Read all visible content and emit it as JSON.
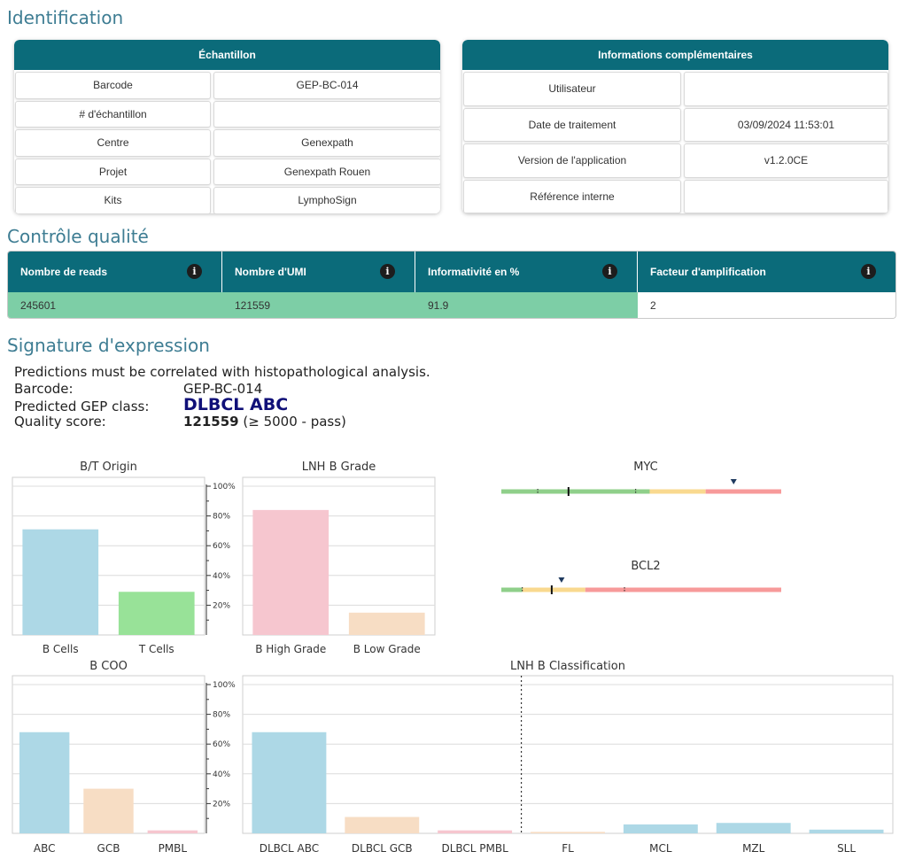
{
  "sections": {
    "identification": "Identification",
    "quality_control": "Contrôle qualité",
    "signature": "Signature d'expression"
  },
  "sample_panel": {
    "title": "Échantillon",
    "rows": [
      {
        "label": "Barcode",
        "value": "GEP-BC-014"
      },
      {
        "label": "# d'échantillon",
        "value": ""
      },
      {
        "label": "Centre",
        "value": "Genexpath"
      },
      {
        "label": "Projet",
        "value": "Genexpath Rouen"
      },
      {
        "label": "Kits",
        "value": "LymphoSign"
      }
    ]
  },
  "extra_panel": {
    "title": "Informations complémentaires",
    "rows": [
      {
        "label": "Utilisateur",
        "value": ""
      },
      {
        "label": "Date de traitement",
        "value": "03/09/2024 11:53:01"
      },
      {
        "label": "Version de l'application",
        "value": "v1.2.0CE"
      },
      {
        "label": "Référence interne",
        "value": ""
      }
    ]
  },
  "qc": {
    "headers": [
      "Nombre de reads",
      "Nombre d'UMI",
      "Informativité en %",
      "Facteur d'amplification"
    ],
    "values": [
      "245601",
      "121559",
      "91.9",
      "2"
    ],
    "pass_color": "#7dcea6",
    "info_icon": "info-icon"
  },
  "signature": {
    "disclaimer": "Predictions must be correlated with histopathological analysis.",
    "barcode_label": "Barcode:",
    "barcode_value": "GEP-BC-014",
    "class_label": "Predicted GEP class:",
    "class_value": "DLBCL ABC",
    "score_label": "Quality score:",
    "score_value": "121559",
    "score_note": " (≥ 5000 - pass)"
  },
  "chart_data": [
    {
      "type": "bar",
      "title": "B/T Origin",
      "categories": [
        "B Cells",
        "T Cells"
      ],
      "values": [
        71,
        29
      ],
      "colors": [
        "#add8e6",
        "#98e298"
      ],
      "ylim": [
        0,
        100
      ],
      "ytick_labels": [
        "20%",
        "40%",
        "60%",
        "80%",
        "100%"
      ],
      "grid": true
    },
    {
      "type": "bar",
      "title": "LNH B Grade",
      "categories": [
        "B High Grade",
        "B Low Grade"
      ],
      "values": [
        84,
        15
      ],
      "colors": [
        "#f6c6cf",
        "#f7ddc4"
      ],
      "ylim": [
        0,
        100
      ],
      "ytick_labels": [
        "20%",
        "40%",
        "60%",
        "80%",
        "100%"
      ],
      "grid": true
    },
    {
      "type": "bar",
      "title": "B COO",
      "categories": [
        "ABC",
        "GCB",
        "PMBL"
      ],
      "values": [
        68,
        30,
        2
      ],
      "colors": [
        "#add8e6",
        "#f7ddc4",
        "#f6c6cf"
      ],
      "ylim": [
        0,
        100
      ],
      "ytick_labels": [
        "20%",
        "40%",
        "60%",
        "80%",
        "100%"
      ],
      "grid": true
    },
    {
      "type": "bar",
      "title": "LNH B Classification",
      "categories": [
        "DLBCL ABC",
        "DLBCL GCB",
        "DLBCL PMBL",
        "FL",
        "MCL",
        "MZL",
        "SLL"
      ],
      "values": [
        68,
        11,
        2,
        1,
        6,
        7,
        2.5
      ],
      "colors": [
        "#add8e6",
        "#f7ddc4",
        "#f6c6cf",
        "#f7ddc4",
        "#add8e6",
        "#add8e6",
        "#add8e6"
      ],
      "ylim": [
        0,
        100
      ],
      "grid": true,
      "divider_after_index": 2
    },
    {
      "type": "gauge",
      "title": "MYC",
      "segments": [
        {
          "from": 0,
          "to": 0.53,
          "color": "#8fcf8a"
        },
        {
          "from": 0.53,
          "to": 0.73,
          "color": "#f9d98f"
        },
        {
          "from": 0.73,
          "to": 1,
          "color": "#f79a9a"
        }
      ],
      "ticks": [
        0.13,
        0.48
      ],
      "marker": 0.24,
      "pointer": 0.83
    },
    {
      "type": "gauge",
      "title": "BCL2",
      "segments": [
        {
          "from": 0,
          "to": 0.075,
          "color": "#8fcf8a"
        },
        {
          "from": 0.075,
          "to": 0.3,
          "color": "#f9d98f"
        },
        {
          "from": 0.3,
          "to": 1,
          "color": "#f79a9a"
        }
      ],
      "ticks": [
        0.075,
        0.44
      ],
      "marker": 0.18,
      "pointer": 0.215
    }
  ]
}
